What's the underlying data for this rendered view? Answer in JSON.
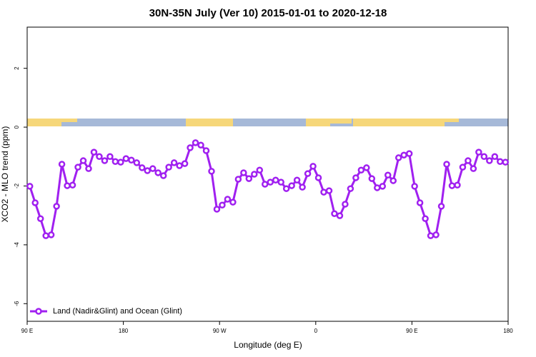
{
  "chart_data": {
    "type": "line",
    "title": "30N-35N July (Ver 10)   2015-01-01 to 2020-12-18",
    "x_label": "Longitude (deg E)",
    "y_label": "XCO2 - MLO trend (ppm)",
    "x": [
      92.5,
      97.5,
      102.5,
      107.5,
      112.5,
      117.5,
      122.5,
      127.5,
      132.5,
      137.5,
      142.5,
      147.5,
      152.5,
      157.5,
      162.5,
      167.5,
      172.5,
      177.5,
      182.5,
      187.5,
      192.5,
      197.5,
      202.5,
      207.5,
      212.5,
      217.5,
      222.5,
      227.5,
      232.5,
      237.5,
      242.5,
      247.5,
      252.5,
      257.5,
      262.5,
      267.5,
      272.5,
      277.5,
      282.5,
      287.5,
      292.5,
      297.5,
      302.5,
      307.5,
      312.5,
      317.5,
      322.5,
      327.5,
      332.5,
      337.5,
      342.5,
      347.5,
      352.5,
      357.5,
      362.5,
      367.5,
      372.5,
      377.5,
      382.5,
      387.5,
      392.5,
      397.5,
      402.5,
      407.5,
      412.5,
      417.5,
      422.5,
      427.5,
      432.5,
      437.5,
      442.5,
      447.5,
      452.5,
      457.5,
      462.5,
      467.5,
      472.5,
      477.5,
      482.5,
      487.5,
      492.5,
      497.5,
      502.5,
      507.5,
      512.5,
      517.5,
      522.5,
      527.5,
      532.5,
      537.5
    ],
    "series": [
      {
        "name": "Land (Nadir&Glint) and Ocean (Glint)",
        "color": "#a020f0",
        "values": [
          -2.01,
          -2.57,
          -3.11,
          -3.69,
          -3.66,
          -2.69,
          -1.26,
          -1.99,
          -1.97,
          -1.36,
          -1.14,
          -1.41,
          -0.85,
          -1.0,
          -1.14,
          -1.0,
          -1.17,
          -1.19,
          -1.07,
          -1.12,
          -1.21,
          -1.38,
          -1.48,
          -1.41,
          -1.55,
          -1.65,
          -1.36,
          -1.21,
          -1.31,
          -1.24,
          -0.7,
          -0.53,
          -0.61,
          -0.8,
          -1.5,
          -2.79,
          -2.65,
          -2.45,
          -2.55,
          -1.77,
          -1.55,
          -1.75,
          -1.6,
          -1.46,
          -1.94,
          -1.87,
          -1.8,
          -1.87,
          -2.09,
          -1.99,
          -1.8,
          -2.04,
          -1.58,
          -1.33,
          -1.72,
          -2.21,
          -2.16,
          -2.94,
          -3.01,
          -2.62,
          -2.09,
          -1.72,
          -1.46,
          -1.38,
          -1.75,
          -2.06,
          -2.01,
          -1.63,
          -1.82,
          -1.04,
          -0.95,
          -0.9,
          -2.01,
          -2.57,
          -3.11,
          -3.69,
          -3.66,
          -2.69,
          -1.26,
          -1.99,
          -1.97,
          -1.36,
          -1.14,
          -1.41,
          -0.85,
          -1.0,
          -1.14,
          -1.0,
          -1.17,
          -1.19
        ]
      }
    ],
    "xlim": [
      90,
      540
    ],
    "xticks": [
      {
        "value": 90,
        "label": "90 E"
      },
      180,
      {
        "value": 270,
        "label": "90 W"
      },
      {
        "value": 360,
        "label": "0"
      },
      {
        "value": 450,
        "label": "90 E"
      },
      {
        "value": 540,
        "label": "180"
      }
    ],
    "ylim": [
      -6.6,
      3.4
    ],
    "yticks": [
      -6,
      -4,
      -2,
      0,
      2
    ],
    "legend": "bottom-left"
  }
}
